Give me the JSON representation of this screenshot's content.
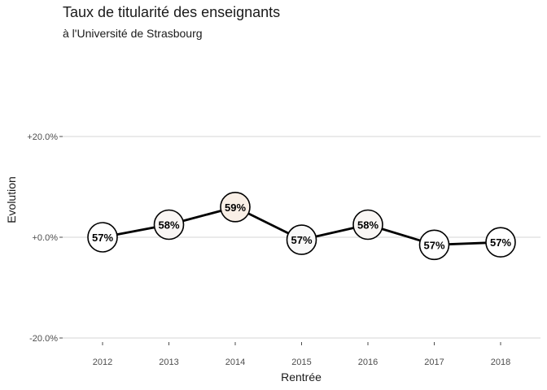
{
  "chart_data": {
    "type": "line",
    "title": "Taux de titularité des enseignants",
    "subtitle": "à  l'Université de Strasbourg",
    "xlabel": "Rentrée",
    "ylabel": "Evolution",
    "ylim": [
      -0.2,
      0.2
    ],
    "y_ticks": [
      {
        "value": 0.2,
        "label": "+20.0%"
      },
      {
        "value": 0.0,
        "label": "+0.0%"
      },
      {
        "value": -0.2,
        "label": "-20.0%"
      }
    ],
    "categories": [
      "2012",
      "2013",
      "2014",
      "2015",
      "2016",
      "2017",
      "2018"
    ],
    "values": [
      0.0,
      0.025,
      0.06,
      -0.005,
      0.025,
      -0.015,
      -0.01
    ],
    "point_labels": [
      "57%",
      "58%",
      "59%",
      "57%",
      "58%",
      "57%",
      "57%"
    ],
    "point_fills": [
      "#ffffff",
      "#f9f6f4",
      "#f9efe6",
      "#f9f9f9",
      "#f9f6f4",
      "#ffffff",
      "#ffffff"
    ],
    "line_color": "#000000",
    "grid": true,
    "legend": "none"
  }
}
